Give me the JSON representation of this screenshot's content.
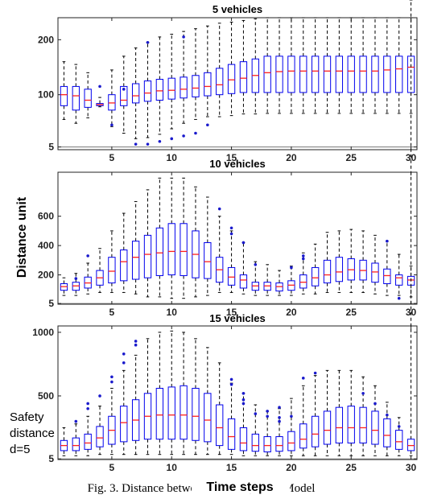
{
  "figure": {
    "ylabel": "Distance unit",
    "xlabel": "Time steps",
    "annotation": [
      "Safety",
      "distance",
      "d=5"
    ],
    "caption": "Fig. 3.  Distance between vehicles, DCA Model"
  },
  "chart_data": [
    {
      "type": "box",
      "title": "5 vehicles",
      "xlim": [
        0.5,
        30.5
      ],
      "ylim": [
        0,
        240
      ],
      "yticks": [
        5,
        100,
        200
      ],
      "xticks": [
        5,
        10,
        15,
        20,
        25,
        30
      ],
      "reference_line": 5,
      "x": [
        1,
        2,
        3,
        4,
        5,
        6,
        7,
        8,
        9,
        10,
        11,
        12,
        13,
        14,
        15,
        16,
        17,
        18,
        19,
        20,
        21,
        22,
        23,
        24,
        25,
        26,
        27,
        28,
        29,
        30
      ],
      "q1": [
        80,
        72,
        77,
        80,
        72,
        80,
        85,
        88,
        90,
        92,
        94,
        96,
        98,
        100,
        102,
        104,
        104,
        104,
        104,
        104,
        104,
        104,
        104,
        104,
        104,
        104,
        104,
        104,
        104,
        104
      ],
      "median": [
        100,
        98,
        90,
        82,
        85,
        90,
        98,
        103,
        107,
        108,
        110,
        112,
        115,
        118,
        127,
        130,
        135,
        140,
        142,
        143,
        143,
        143,
        143,
        143,
        143,
        143,
        143,
        145,
        147,
        150
      ],
      "q3": [
        115,
        115,
        110,
        84,
        100,
        115,
        120,
        125,
        128,
        130,
        132,
        135,
        140,
        148,
        155,
        160,
        165,
        170,
        170,
        170,
        170,
        170,
        170,
        170,
        170,
        170,
        170,
        170,
        170,
        170
      ],
      "whisker_low": [
        55,
        48,
        58,
        78,
        42,
        30,
        20,
        22,
        28,
        38,
        48,
        55,
        60,
        60,
        62,
        65,
        65,
        66,
        66,
        66,
        66,
        66,
        66,
        66,
        66,
        66,
        66,
        66,
        66,
        66
      ],
      "whisker_high": [
        160,
        155,
        140,
        95,
        145,
        170,
        185,
        195,
        205,
        210,
        215,
        220,
        225,
        230,
        232,
        235,
        238,
        240,
        240,
        240,
        240,
        240,
        240,
        240,
        240,
        240,
        240,
        240,
        240,
        240
      ],
      "outliers": [
        [
          4,
          115
        ],
        [
          5,
          45
        ],
        [
          6,
          110
        ],
        [
          7,
          10
        ],
        [
          8,
          10
        ],
        [
          8,
          195
        ],
        [
          9,
          15
        ],
        [
          10,
          20
        ],
        [
          11,
          205
        ],
        [
          11,
          25
        ],
        [
          12,
          30
        ],
        [
          13,
          45
        ]
      ]
    },
    {
      "type": "box",
      "title": "10 vehicles",
      "xlim": [
        0.5,
        30.5
      ],
      "ylim": [
        0,
        900
      ],
      "yticks": [
        5,
        200,
        400,
        600
      ],
      "xticks": [
        5,
        10,
        15,
        20,
        25,
        30
      ],
      "reference_line": 5,
      "x": [
        1,
        2,
        3,
        4,
        5,
        6,
        7,
        8,
        9,
        10,
        11,
        12,
        13,
        14,
        15,
        16,
        17,
        18,
        19,
        20,
        21,
        22,
        23,
        24,
        25,
        26,
        27,
        28,
        29,
        30
      ],
      "q1": [
        95,
        95,
        110,
        130,
        145,
        160,
        170,
        180,
        195,
        200,
        195,
        180,
        175,
        150,
        130,
        110,
        95,
        95,
        90,
        95,
        110,
        125,
        145,
        155,
        165,
        165,
        150,
        140,
        130,
        130
      ],
      "median": [
        120,
        125,
        145,
        180,
        225,
        290,
        320,
        340,
        350,
        360,
        360,
        340,
        290,
        235,
        185,
        165,
        125,
        125,
        120,
        130,
        150,
        180,
        200,
        220,
        235,
        230,
        220,
        195,
        180,
        165
      ],
      "q3": [
        140,
        150,
        185,
        230,
        320,
        370,
        430,
        470,
        520,
        550,
        550,
        500,
        420,
        320,
        250,
        200,
        150,
        150,
        145,
        160,
        200,
        250,
        300,
        320,
        310,
        300,
        280,
        240,
        200,
        190
      ],
      "whisker_low": [
        60,
        60,
        70,
        80,
        80,
        80,
        70,
        50,
        50,
        40,
        40,
        50,
        60,
        80,
        80,
        70,
        60,
        60,
        60,
        60,
        70,
        70,
        80,
        80,
        80,
        80,
        70,
        60,
        60,
        50
      ],
      "whisker_high": [
        180,
        210,
        280,
        380,
        500,
        620,
        700,
        780,
        860,
        860,
        860,
        800,
        730,
        600,
        500,
        420,
        290,
        270,
        230,
        260,
        350,
        410,
        490,
        500,
        510,
        500,
        470,
        430,
        340,
        260
      ],
      "outliers": [
        [
          2,
          175
        ],
        [
          3,
          330
        ],
        [
          14,
          650
        ],
        [
          15,
          520
        ],
        [
          15,
          480
        ],
        [
          16,
          420
        ],
        [
          17,
          270
        ],
        [
          20,
          250
        ],
        [
          21,
          330
        ],
        [
          21,
          310
        ],
        [
          28,
          430
        ],
        [
          29,
          40
        ]
      ]
    },
    {
      "type": "box",
      "title": "15 vehicles",
      "xlim": [
        0.5,
        30.5
      ],
      "ylim": [
        0,
        1050
      ],
      "yticks": [
        5,
        500,
        1000
      ],
      "xticks": [
        5,
        10,
        15,
        20,
        25,
        30
      ],
      "reference_line": 5,
      "x": [
        1,
        2,
        3,
        4,
        5,
        6,
        7,
        8,
        9,
        10,
        11,
        12,
        13,
        14,
        15,
        16,
        17,
        18,
        19,
        20,
        21,
        22,
        23,
        24,
        25,
        26,
        27,
        28,
        29,
        30
      ],
      "q1": [
        70,
        70,
        80,
        100,
        120,
        140,
        150,
        160,
        160,
        160,
        160,
        150,
        140,
        110,
        80,
        70,
        65,
        60,
        65,
        70,
        90,
        100,
        120,
        130,
        130,
        130,
        120,
        100,
        80,
        70
      ],
      "median": [
        110,
        110,
        130,
        170,
        230,
        290,
        310,
        340,
        350,
        350,
        350,
        340,
        310,
        250,
        180,
        130,
        110,
        110,
        110,
        130,
        160,
        200,
        230,
        250,
        250,
        250,
        230,
        190,
        140,
        110
      ],
      "q3": [
        150,
        170,
        200,
        260,
        340,
        420,
        470,
        520,
        560,
        570,
        580,
        560,
        520,
        430,
        320,
        250,
        200,
        180,
        180,
        220,
        280,
        340,
        380,
        410,
        420,
        410,
        380,
        320,
        230,
        160
      ],
      "whisker_low": [
        30,
        30,
        30,
        40,
        40,
        40,
        40,
        40,
        40,
        40,
        40,
        40,
        40,
        40,
        40,
        30,
        30,
        30,
        30,
        30,
        30,
        30,
        30,
        30,
        30,
        30,
        30,
        30,
        30,
        30
      ],
      "whisker_high": [
        250,
        280,
        340,
        420,
        560,
        700,
        820,
        950,
        1000,
        1010,
        1000,
        950,
        880,
        760,
        600,
        520,
        430,
        380,
        400,
        480,
        580,
        660,
        700,
        700,
        700,
        650,
        580,
        450,
        330
      ],
      "outliers": [
        [
          2,
          300
        ],
        [
          3,
          440
        ],
        [
          3,
          400
        ],
        [
          4,
          500
        ],
        [
          5,
          650
        ],
        [
          5,
          610
        ],
        [
          6,
          830
        ],
        [
          6,
          760
        ],
        [
          7,
          930
        ],
        [
          7,
          900
        ],
        [
          15,
          630
        ],
        [
          15,
          590
        ],
        [
          16,
          520
        ],
        [
          16,
          470
        ],
        [
          16,
          440
        ],
        [
          17,
          360
        ],
        [
          18,
          380
        ],
        [
          18,
          340
        ],
        [
          19,
          410
        ],
        [
          19,
          330
        ],
        [
          19,
          300
        ],
        [
          20,
          340
        ],
        [
          21,
          640
        ],
        [
          22,
          680
        ],
        [
          26,
          520
        ],
        [
          27,
          440
        ],
        [
          28,
          350
        ],
        [
          29,
          260
        ]
      ]
    }
  ],
  "colors": {
    "box": "#0000ee",
    "median": "#ff2020",
    "whisker": "#000000",
    "outlier": "#1a1acc",
    "axis": "#222222",
    "reference_line": "#777777"
  }
}
